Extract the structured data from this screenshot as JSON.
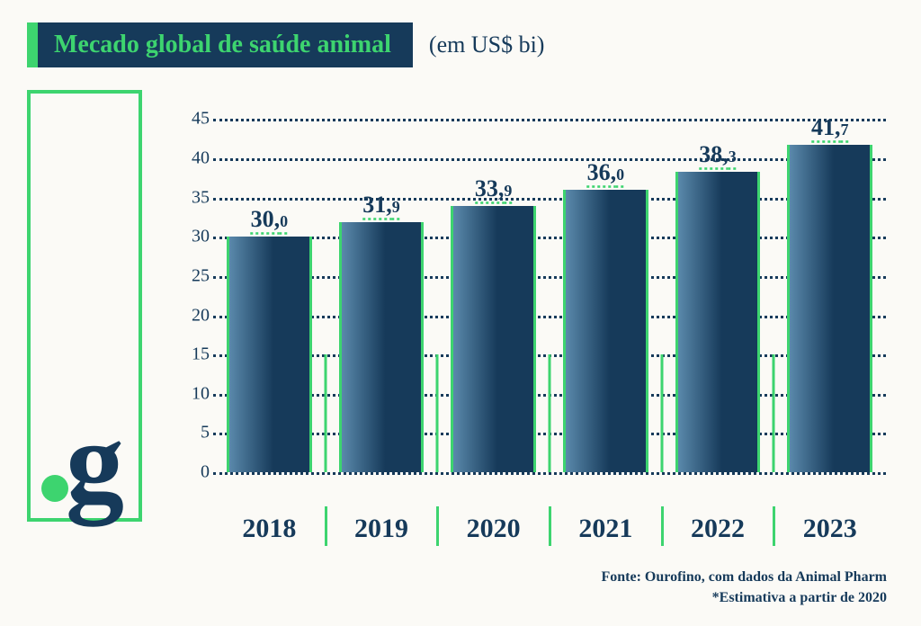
{
  "header": {
    "title": "Mecado global de saúde animal",
    "subtitle": "(em US$ bi)"
  },
  "chart": {
    "type": "bar",
    "ymin": 0,
    "ymax": 47,
    "yticks": [
      0,
      5,
      10,
      15,
      20,
      25,
      30,
      35,
      40,
      45
    ],
    "categories": [
      "2018",
      "2019",
      "2020",
      "2021",
      "2022",
      "2023"
    ],
    "values": [
      30.0,
      31.9,
      33.9,
      36.0,
      38.3,
      41.7
    ],
    "value_labels_int": [
      "30,",
      "31,",
      "33,",
      "36,",
      "38,",
      "41,"
    ],
    "value_labels_dec": [
      "0",
      "9",
      "9",
      "0",
      "3",
      "7"
    ],
    "bar_gradient_from": "#5a89ab",
    "bar_gradient_to": "#163a5a",
    "bar_border_color": "#3dd46f",
    "grid_color": "#163a5a",
    "divider_reaches_value": 15,
    "background_color": "#fbfaf6",
    "title_fontsize": 28,
    "subtitle_fontsize": 26,
    "value_fontsize": 26,
    "xlabel_fontsize": 30,
    "ytick_fontsize": 20
  },
  "colors": {
    "accent": "#3dd46f",
    "primary": "#163a5a",
    "background": "#fbfaf6"
  },
  "footer": {
    "source": "Fonte: Ourofino, com dados da Animal Pharm",
    "note": "*Estimativa a partir de 2020"
  }
}
